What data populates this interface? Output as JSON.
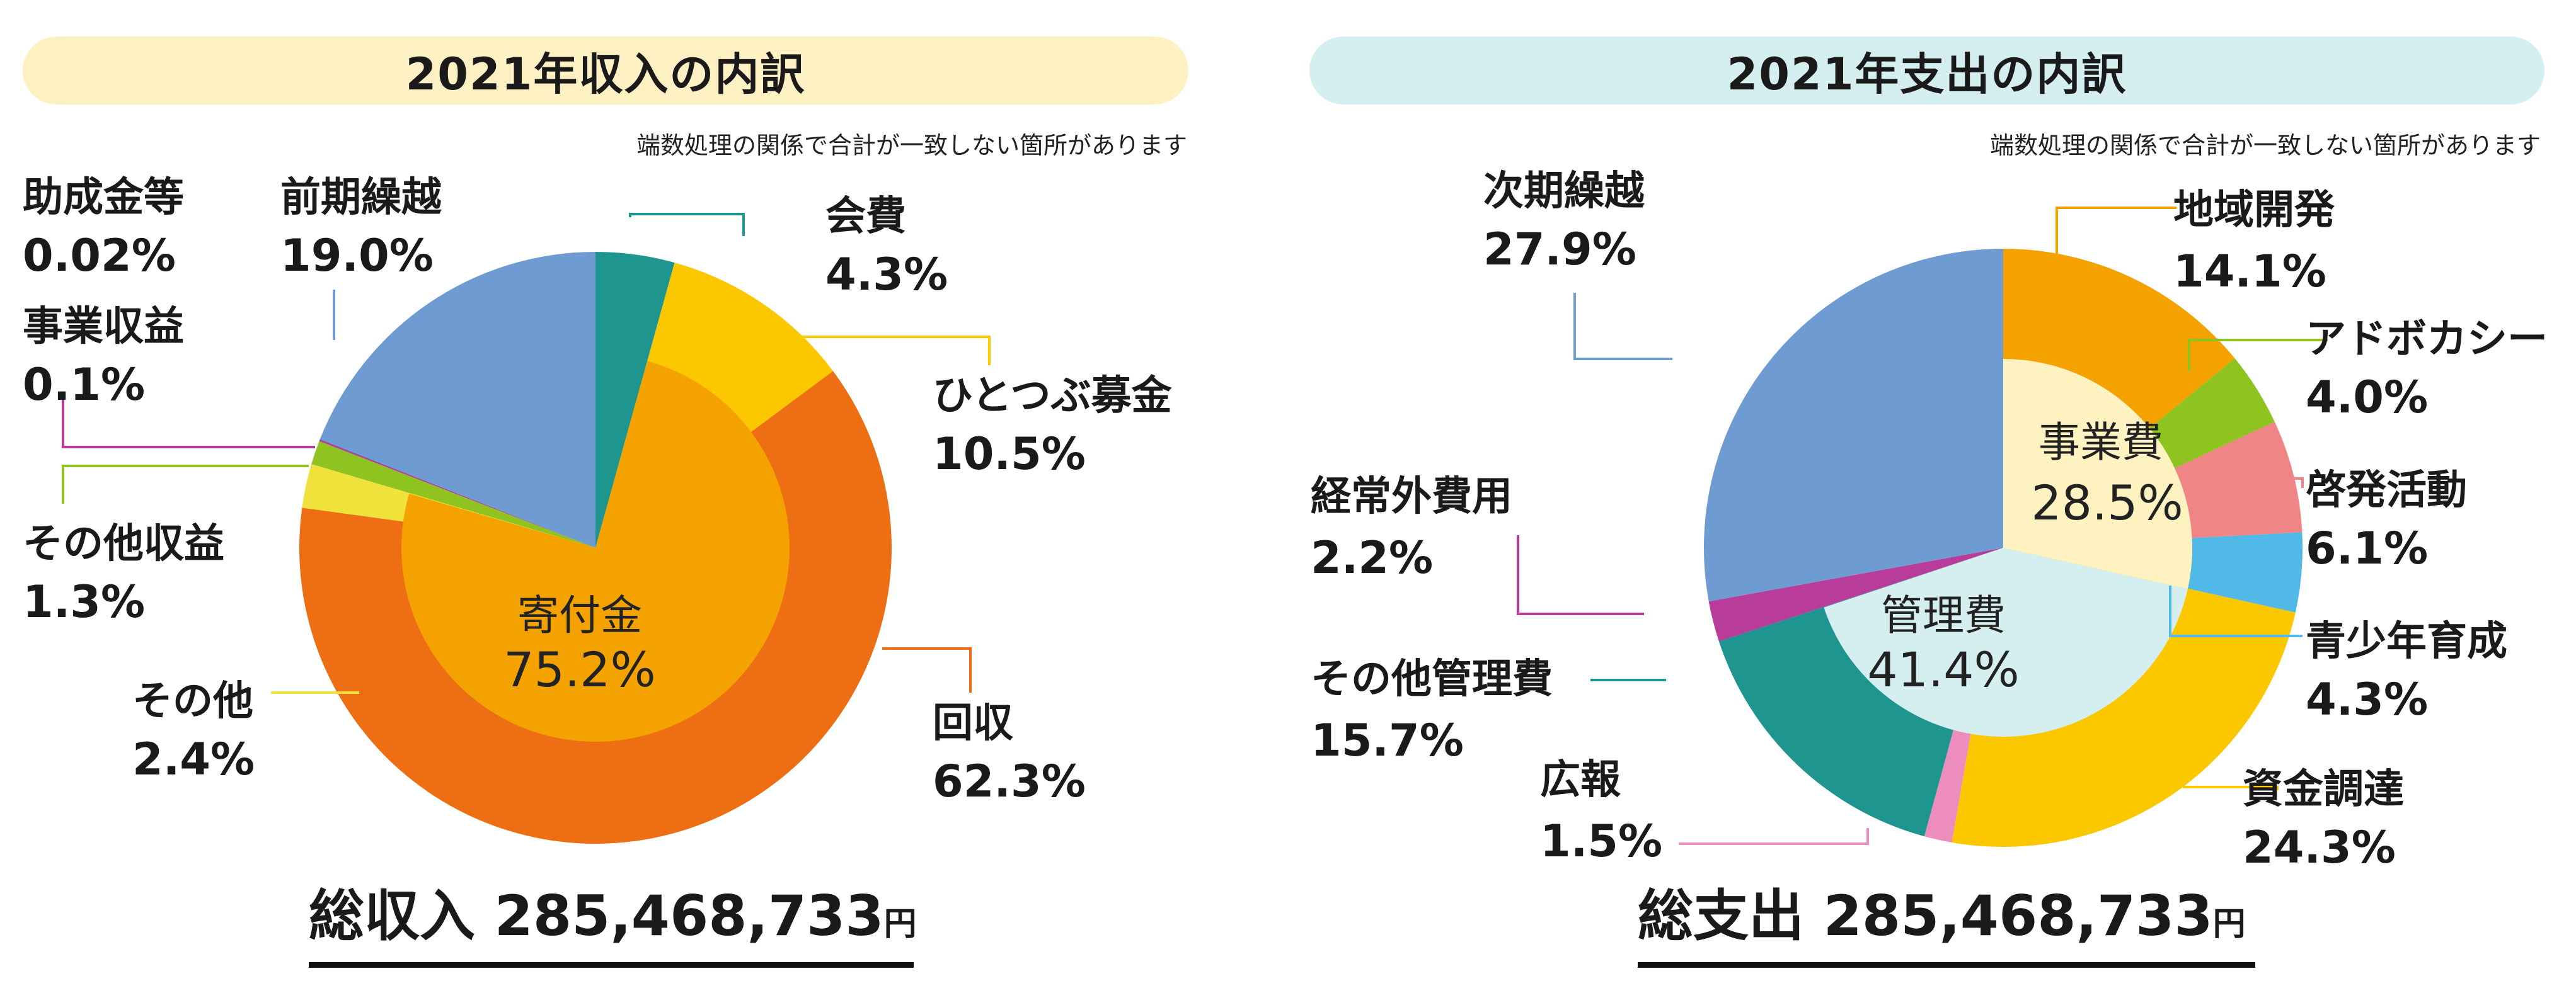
{
  "panels": [
    {
      "title": "2021年収入の内訳",
      "note": "端数処理の関係で合計が一致しない箇所があります",
      "total": {
        "label": "総収入",
        "amount": "285,468,733",
        "unit": "円"
      },
      "colors": {
        "title_bg": "#fdf1c3"
      }
    },
    {
      "title": "2021年支出の内訳",
      "note": "端数処理の関係で合計が一致しない箇所があります",
      "total": {
        "label": "総支出",
        "amount": "285,468,733",
        "unit": "円"
      },
      "colors": {
        "title_bg": "#d5eef0"
      }
    }
  ],
  "chart_data": [
    {
      "type": "pie",
      "title": "2021年収入の内訳",
      "start_angle_deg": 0,
      "direction": "clockwise",
      "outer_ring": [
        {
          "name": "会費",
          "value": 4.3,
          "display": "4.3%",
          "color": "#1f9590"
        },
        {
          "name": "ひとつぶ募金",
          "value": 10.5,
          "display": "10.5%",
          "color": "#fbc800"
        },
        {
          "name": "回収",
          "value": 62.3,
          "display": "62.3%",
          "color": "#ee6e14"
        },
        {
          "name": "その他",
          "value": 2.4,
          "display": "2.4%",
          "color": "#f0e23a"
        },
        {
          "name": "その他収益",
          "value": 1.3,
          "display": "1.3%",
          "color": "#8fc31f"
        },
        {
          "name": "事業収益",
          "value": 0.1,
          "display": "0.1%",
          "color": "#b83c9a"
        },
        {
          "name": "助成金等",
          "value": 0.02,
          "display": "0.02%",
          "color": "#2b6db3"
        },
        {
          "name": "前期繰越",
          "value": 19.0,
          "display": "19.0%",
          "color": "#6d9bd2"
        }
      ],
      "inner_ring": [
        {
          "name": "寄付金",
          "value": 75.2,
          "display": "75.2%",
          "from_deg": 15.5,
          "to_deg": 286.2,
          "color": "#f4a200"
        }
      ]
    },
    {
      "type": "pie",
      "title": "2021年支出の内訳",
      "start_angle_deg": 0,
      "direction": "clockwise",
      "outer_ring": [
        {
          "name": "地域開発",
          "value": 14.1,
          "display": "14.1%",
          "color": "#f4a200"
        },
        {
          "name": "アドボカシー",
          "value": 4.0,
          "display": "4.0%",
          "color": "#8fc31f"
        },
        {
          "name": "啓発活動",
          "value": 6.1,
          "display": "6.1%",
          "color": "#ef8585"
        },
        {
          "name": "青少年育成",
          "value": 4.3,
          "display": "4.3%",
          "color": "#50b9e8"
        },
        {
          "name": "資金調達",
          "value": 24.3,
          "display": "24.3%",
          "color": "#fbc800"
        },
        {
          "name": "広報",
          "value": 1.5,
          "display": "1.5%",
          "color": "#ec8dbe"
        },
        {
          "name": "その他管理費",
          "value": 15.7,
          "display": "15.7%",
          "color": "#1f9590"
        },
        {
          "name": "経常外費用",
          "value": 2.2,
          "display": "2.2%",
          "color": "#b83c9a"
        },
        {
          "name": "次期繰越",
          "value": 27.9,
          "display": "27.9%",
          "color": "#6d9bd2"
        }
      ],
      "inner_ring": [
        {
          "name": "事業費",
          "value": 28.5,
          "display": "28.5%",
          "from_deg": 0,
          "to_deg": 102.6,
          "color": "#fdf2c0"
        },
        {
          "name": "管理費",
          "value": 41.4,
          "display": "41.4%",
          "from_deg": 102.6,
          "to_deg": 251.6,
          "color": "#d5eef0"
        }
      ]
    }
  ]
}
